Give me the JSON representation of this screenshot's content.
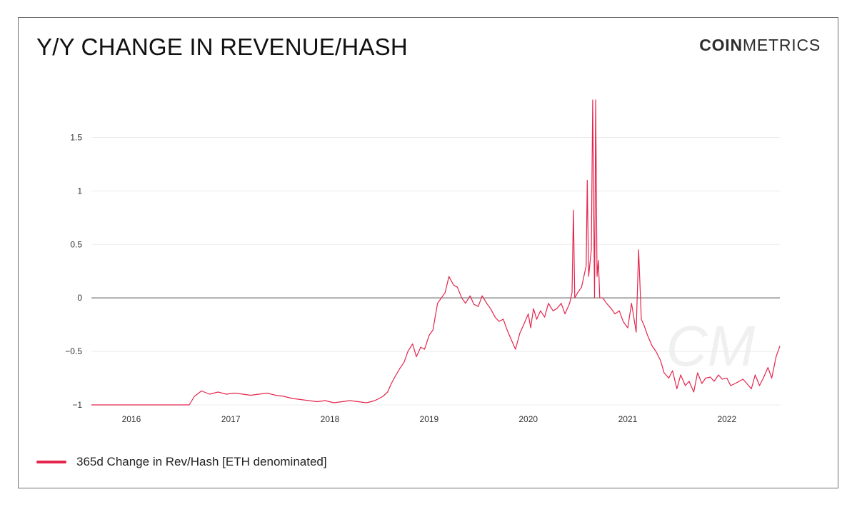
{
  "header": {
    "title": "Y/Y CHANGE IN REVENUE/HASH",
    "brand_bold": "COIN",
    "brand_light": "METRICS"
  },
  "watermark": {
    "text": "CM"
  },
  "colors": {
    "series": "#e4254d",
    "grid": "#ececec",
    "zero_line": "#555555"
  },
  "chart_data": {
    "type": "line",
    "title": "Y/Y CHANGE IN REVENUE/HASH",
    "xlabel": "",
    "ylabel": "",
    "x_ticks": [
      "2016",
      "2017",
      "2018",
      "2019",
      "2020",
      "2021",
      "2022"
    ],
    "y_ticks": [
      1.5,
      1,
      0.5,
      0,
      -0.5,
      -1
    ],
    "y_tick_labels": [
      "1.5",
      "1",
      "0.5",
      "0",
      "−0.5",
      "−1"
    ],
    "xlim": [
      "2015-08-07",
      "2022-07-15"
    ],
    "ylim": [
      -1,
      1.85
    ],
    "grid": true,
    "legend_position": "bottom-left",
    "series": [
      {
        "name": "365d Change in Rev/Hash [ETH denominated]",
        "x": [
          "2015-08-07",
          "2016-08-01",
          "2016-08-20",
          "2016-09-15",
          "2016-10-15",
          "2016-11-15",
          "2016-12-15",
          "2017-01-15",
          "2017-02-15",
          "2017-03-15",
          "2017-04-15",
          "2017-05-15",
          "2017-06-15",
          "2017-07-15",
          "2017-08-15",
          "2017-09-15",
          "2017-10-15",
          "2017-11-15",
          "2017-12-15",
          "2018-01-15",
          "2018-02-15",
          "2018-03-15",
          "2018-04-15",
          "2018-05-15",
          "2018-06-01",
          "2018-06-15",
          "2018-07-01",
          "2018-07-15",
          "2018-08-01",
          "2018-08-15",
          "2018-09-01",
          "2018-09-15",
          "2018-10-01",
          "2018-10-15",
          "2018-11-01",
          "2018-11-15",
          "2018-12-01",
          "2018-12-15",
          "2019-01-01",
          "2019-01-15",
          "2019-02-01",
          "2019-02-15",
          "2019-03-01",
          "2019-03-15",
          "2019-04-01",
          "2019-04-15",
          "2019-05-01",
          "2019-05-15",
          "2019-06-01",
          "2019-06-15",
          "2019-07-01",
          "2019-07-15",
          "2019-08-01",
          "2019-08-15",
          "2019-09-01",
          "2019-09-15",
          "2019-10-01",
          "2019-10-15",
          "2019-11-01",
          "2019-11-15",
          "2019-12-01",
          "2019-12-15",
          "2020-01-01",
          "2020-01-10",
          "2020-01-20",
          "2020-02-01",
          "2020-02-15",
          "2020-03-01",
          "2020-03-15",
          "2020-04-01",
          "2020-04-15",
          "2020-05-01",
          "2020-05-15",
          "2020-06-01",
          "2020-06-10",
          "2020-06-15",
          "2020-06-20",
          "2020-07-01",
          "2020-07-15",
          "2020-08-01",
          "2020-08-05",
          "2020-08-10",
          "2020-08-20",
          "2020-08-25",
          "2020-09-01",
          "2020-09-05",
          "2020-09-10",
          "2020-09-15",
          "2020-09-20",
          "2020-10-01",
          "2020-10-15",
          "2020-11-01",
          "2020-11-15",
          "2020-12-01",
          "2020-12-15",
          "2021-01-01",
          "2021-01-15",
          "2021-02-01",
          "2021-02-10",
          "2021-02-20",
          "2021-03-01",
          "2021-03-15",
          "2021-04-01",
          "2021-04-15",
          "2021-05-01",
          "2021-05-15",
          "2021-06-01",
          "2021-06-15",
          "2021-07-01",
          "2021-07-15",
          "2021-08-01",
          "2021-08-15",
          "2021-09-01",
          "2021-09-15",
          "2021-10-01",
          "2021-10-15",
          "2021-11-01",
          "2021-11-15",
          "2021-12-01",
          "2021-12-15",
          "2022-01-01",
          "2022-01-15",
          "2022-02-01",
          "2022-02-15",
          "2022-03-01",
          "2022-03-15",
          "2022-04-01",
          "2022-04-15",
          "2022-05-01",
          "2022-05-15",
          "2022-06-01",
          "2022-06-15",
          "2022-07-01",
          "2022-07-15"
        ],
        "y": [
          -1.0,
          -1.0,
          -0.92,
          -0.87,
          -0.9,
          -0.88,
          -0.9,
          -0.89,
          -0.9,
          -0.91,
          -0.9,
          -0.89,
          -0.91,
          -0.92,
          -0.94,
          -0.95,
          -0.96,
          -0.97,
          -0.96,
          -0.98,
          -0.97,
          -0.96,
          -0.97,
          -0.98,
          -0.97,
          -0.96,
          -0.94,
          -0.92,
          -0.88,
          -0.8,
          -0.72,
          -0.66,
          -0.6,
          -0.5,
          -0.43,
          -0.55,
          -0.46,
          -0.48,
          -0.35,
          -0.3,
          -0.05,
          0.0,
          0.05,
          0.2,
          0.12,
          0.1,
          0.0,
          -0.05,
          0.02,
          -0.06,
          -0.08,
          0.02,
          -0.05,
          -0.1,
          -0.18,
          -0.22,
          -0.2,
          -0.3,
          -0.4,
          -0.48,
          -0.33,
          -0.25,
          -0.15,
          -0.28,
          -0.1,
          -0.2,
          -0.12,
          -0.18,
          -0.05,
          -0.12,
          -0.1,
          -0.05,
          -0.15,
          -0.05,
          0.05,
          0.82,
          0.0,
          0.05,
          0.1,
          0.3,
          1.1,
          0.2,
          0.45,
          1.85,
          0.0,
          1.85,
          0.2,
          0.35,
          0.0,
          0.0,
          -0.05,
          -0.1,
          -0.15,
          -0.12,
          -0.22,
          -0.28,
          -0.05,
          -0.32,
          0.45,
          -0.2,
          -0.25,
          -0.35,
          -0.45,
          -0.5,
          -0.58,
          -0.7,
          -0.75,
          -0.68,
          -0.85,
          -0.72,
          -0.82,
          -0.78,
          -0.88,
          -0.7,
          -0.8,
          -0.75,
          -0.74,
          -0.78,
          -0.72,
          -0.76,
          -0.75,
          -0.82,
          -0.8,
          -0.78,
          -0.76,
          -0.8,
          -0.85,
          -0.72,
          -0.82,
          -0.75,
          -0.65,
          -0.75,
          -0.55,
          -0.45
        ]
      }
    ]
  }
}
